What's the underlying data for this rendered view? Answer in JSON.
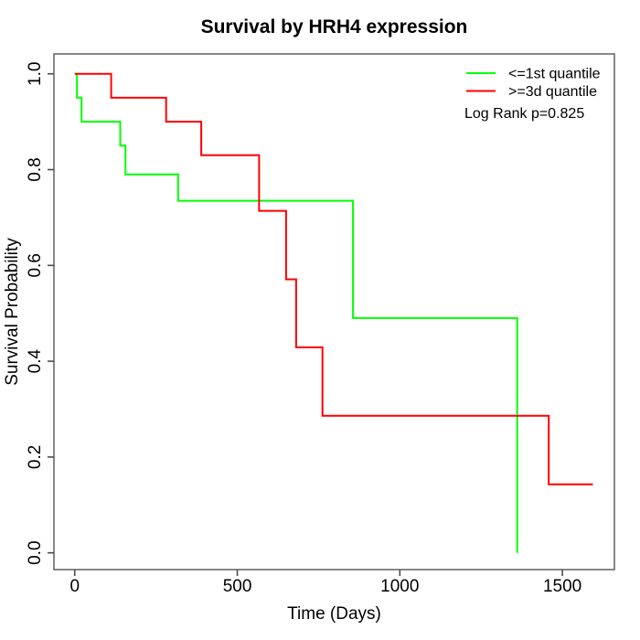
{
  "page": {
    "background": "#ffffff"
  },
  "chart_data": {
    "type": "line",
    "variant": "kaplan-meier-step",
    "title": "Survival by HRH4 expression",
    "xlabel": "Time (Days)",
    "ylabel": "Survival Probability",
    "xlim": [
      -64,
      1660
    ],
    "ylim": [
      -0.035,
      1.0415
    ],
    "grid": false,
    "x_ticks": {
      "values": [
        0,
        500,
        1000,
        1500
      ],
      "labels": [
        "0",
        "500",
        "1000",
        "1500"
      ]
    },
    "y_ticks": {
      "values": [
        0,
        0.2,
        0.4,
        0.6,
        0.8,
        1.0
      ],
      "labels": [
        "0.0",
        "0.2",
        "0.4",
        "0.6",
        "0.8",
        "1.0"
      ]
    },
    "legend": {
      "position": "top-right",
      "annotation": "Log Rank p=0.825"
    },
    "series": [
      {
        "name": "<=1st quantile",
        "color": "#00ff00",
        "points": [
          [
            0,
            1.0
          ],
          [
            7,
            1.0
          ],
          [
            7,
            0.95
          ],
          [
            21,
            0.95
          ],
          [
            21,
            0.9
          ],
          [
            140,
            0.9
          ],
          [
            140,
            0.85
          ],
          [
            156,
            0.85
          ],
          [
            156,
            0.79
          ],
          [
            318,
            0.79
          ],
          [
            318,
            0.735
          ],
          [
            856,
            0.735
          ],
          [
            856,
            0.49
          ],
          [
            1361,
            0.49
          ],
          [
            1361,
            0.0
          ]
        ]
      },
      {
        "name": ">=3d quantile",
        "color": "#ff0000",
        "points": [
          [
            0,
            1.0
          ],
          [
            112,
            1.0
          ],
          [
            112,
            0.95
          ],
          [
            281,
            0.95
          ],
          [
            281,
            0.9
          ],
          [
            389,
            0.9
          ],
          [
            389,
            0.83
          ],
          [
            567,
            0.83
          ],
          [
            567,
            0.714
          ],
          [
            650,
            0.714
          ],
          [
            650,
            0.571
          ],
          [
            681,
            0.571
          ],
          [
            681,
            0.429
          ],
          [
            762,
            0.429
          ],
          [
            762,
            0.286
          ],
          [
            1458,
            0.286
          ],
          [
            1458,
            0.143
          ],
          [
            1594,
            0.143
          ]
        ]
      }
    ]
  },
  "style": {
    "axis_color": "#6b6b6b",
    "tick_color": "#4d4d4d",
    "text_color": "#000000",
    "curve_width": 2
  }
}
